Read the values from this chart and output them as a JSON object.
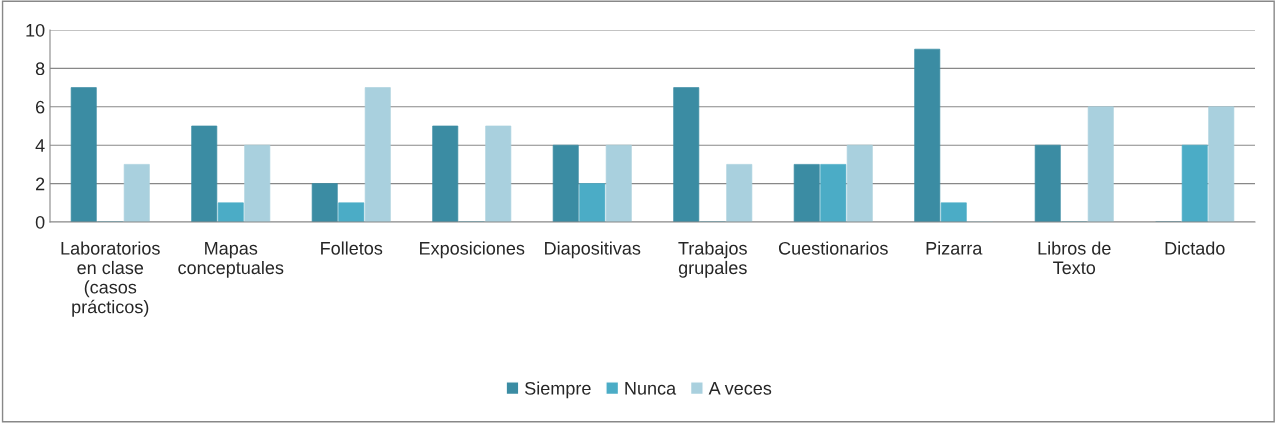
{
  "chart_data": {
    "type": "bar",
    "categories": [
      "Laboratorios\nen clase\n(casos\nprácticos)",
      "Mapas\nconceptuales",
      "Folletos",
      "Exposiciones",
      "Diapositivas",
      "Trabajos\ngrupales",
      "Cuestionarios",
      "Pizarra",
      "Libros de\nTexto",
      "Dictado"
    ],
    "series": [
      {
        "name": "Siempre",
        "color": "#3b8ca3",
        "values": [
          7,
          5,
          2,
          5,
          4,
          7,
          3,
          9,
          4,
          0
        ]
      },
      {
        "name": "Nunca",
        "color": "#4bacc6",
        "values": [
          0,
          1,
          1,
          0,
          2,
          0,
          3,
          1,
          0,
          4
        ]
      },
      {
        "name": "A veces",
        "color": "#a9d0de",
        "values": [
          3,
          4,
          7,
          5,
          4,
          3,
          4,
          0,
          6,
          6
        ]
      }
    ],
    "ylim": [
      0,
      10
    ],
    "yticks": [
      0,
      2,
      4,
      6,
      8,
      10
    ],
    "grid": "y",
    "legend": "bottom"
  }
}
